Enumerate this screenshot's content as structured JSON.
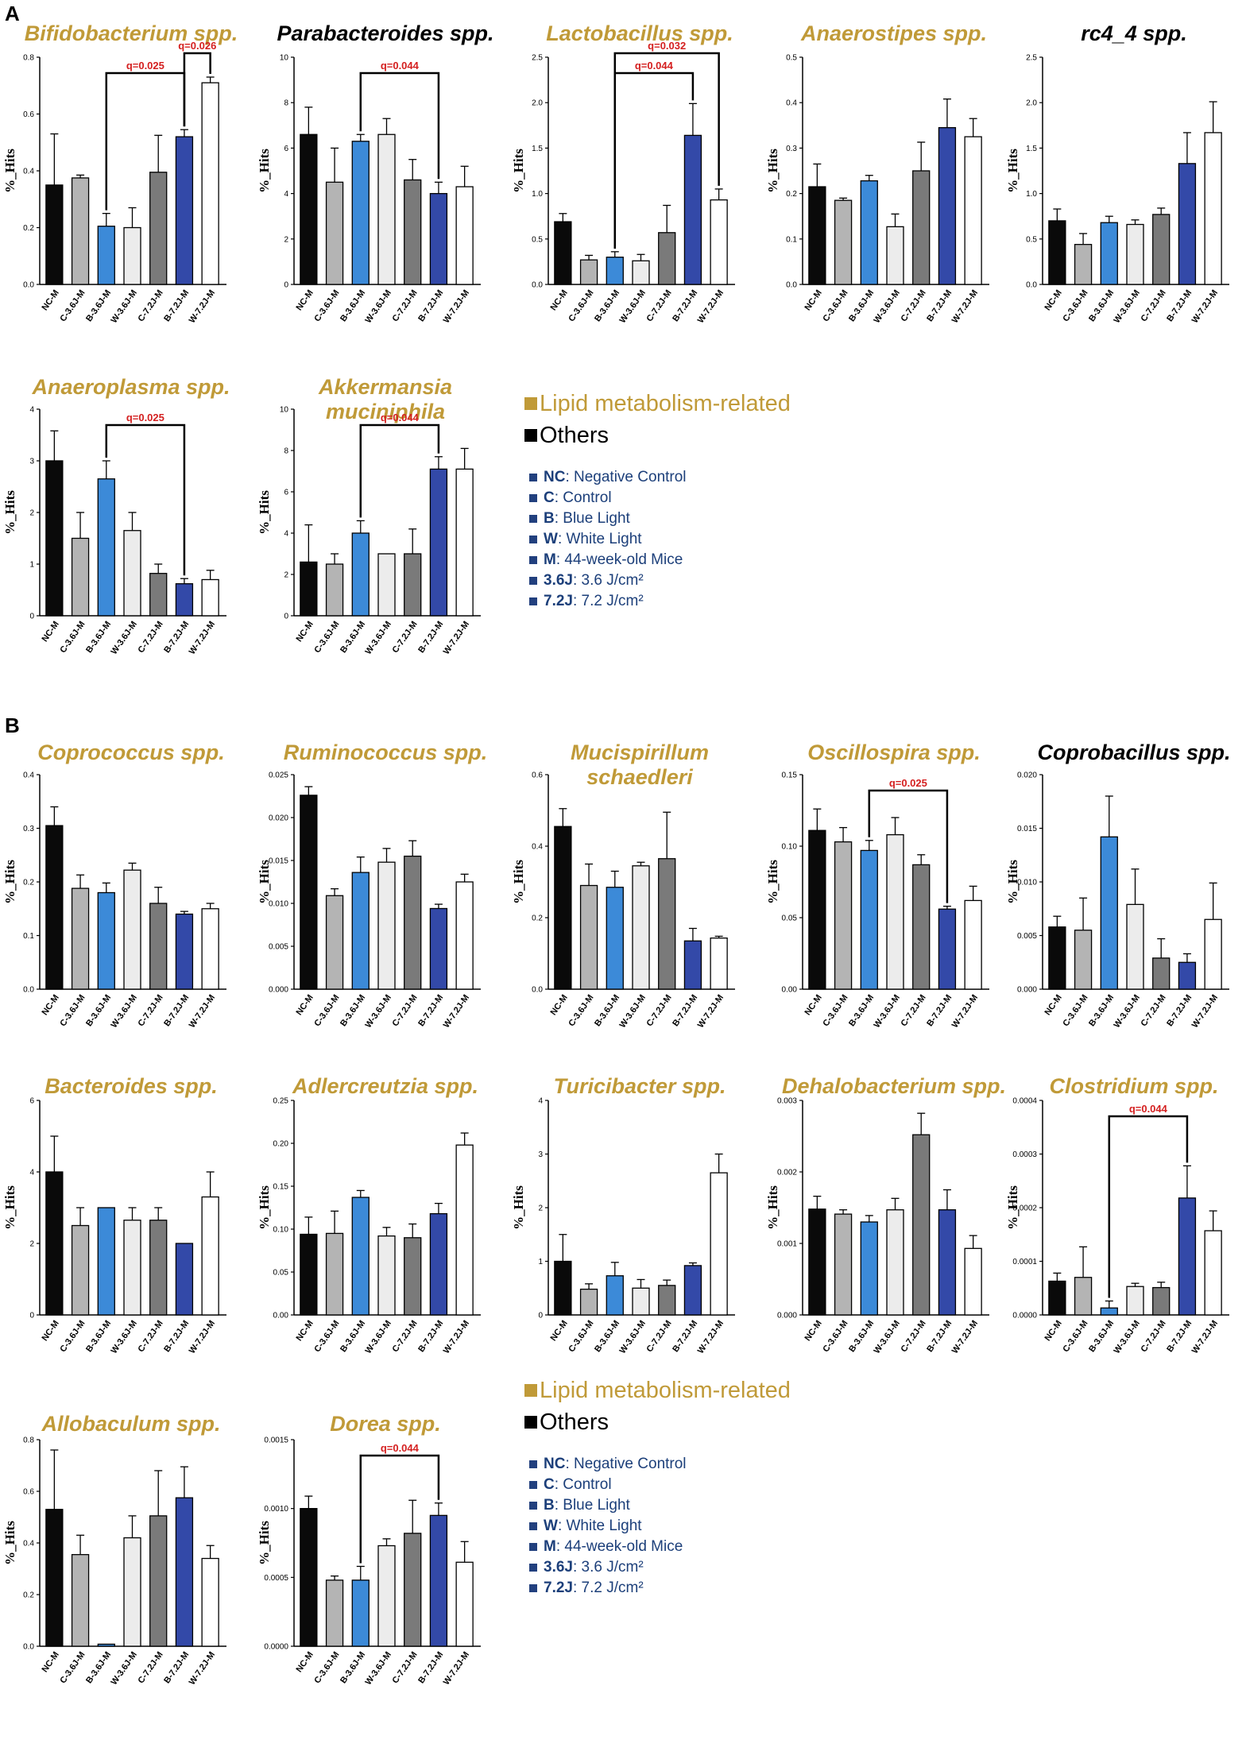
{
  "figure": {
    "label_a": "A",
    "label_b": "B"
  },
  "colors": {
    "lipid": "#c09a38",
    "others": "#000000",
    "legend_text": "#1c3f7a",
    "legend_square": "#22407e",
    "q_text": "#d42020",
    "bars": [
      "#0a0a0a",
      "#b4b4b4",
      "#3c8ad8",
      "#ececec",
      "#7a7a7a",
      "#3349a8",
      "#ffffff"
    ]
  },
  "y_axis_label": "%_Hits",
  "legend": {
    "categories": [
      {
        "label": "Lipid metabolism-related",
        "color": "#c09a38"
      },
      {
        "label": "Others",
        "color": "#000000"
      }
    ],
    "abbreviations": [
      {
        "key": "NC",
        "desc": ": Negative Control"
      },
      {
        "key": "C",
        "desc": ": Control"
      },
      {
        "key": "B",
        "desc": ": Blue Light"
      },
      {
        "key": "W",
        "desc": ": White Light"
      },
      {
        "key": "M",
        "desc": ": 44-week-old Mice"
      },
      {
        "key": "3.6J",
        "desc": ": 3.6 J/cm²"
      },
      {
        "key": "7.2J",
        "desc": ": 7.2 J/cm²"
      }
    ]
  },
  "chart_data": [
    {
      "type": "bar",
      "title": "Bifidobacterium spp.",
      "title_color": "lipid",
      "ylabel": "%_Hits",
      "ylim": [
        0,
        0.8
      ],
      "ticks": [
        "0.0",
        "0.2",
        "0.4",
        "0.6",
        "0.8"
      ],
      "categories": [
        "NC-M",
        "C-3.6J-M",
        "B-3.6J-M",
        "W-3.6J-M",
        "C-7.2J-M",
        "B-7.2J-M",
        "W-7.2J-M"
      ],
      "values": [
        0.35,
        0.375,
        0.205,
        0.2,
        0.395,
        0.52,
        0.71
      ],
      "errors": [
        0.18,
        0.01,
        0.045,
        0.07,
        0.13,
        0.025,
        0.02
      ],
      "annotations": [
        {
          "from": 2,
          "to": 5,
          "label": "q=0.025"
        },
        {
          "from": 5,
          "to": 6,
          "label": "q=0.026"
        }
      ]
    },
    {
      "type": "bar",
      "title": "Parabacteroides spp.",
      "title_color": "others",
      "ylabel": "%_Hits",
      "ylim": [
        0,
        10
      ],
      "ticks": [
        "0",
        "2",
        "4",
        "6",
        "8",
        "10"
      ],
      "categories": [
        "NC-M",
        "C-3.6J-M",
        "B-3.6J-M",
        "W-3.6J-M",
        "C-7.2J-M",
        "B-7.2J-M",
        "W-7.2J-M"
      ],
      "values": [
        6.6,
        4.5,
        6.3,
        6.6,
        4.6,
        4.0,
        4.3
      ],
      "errors": [
        1.2,
        1.5,
        0.3,
        0.7,
        0.9,
        0.5,
        0.9
      ],
      "annotations": [
        {
          "from": 2,
          "to": 5,
          "label": "q=0.044"
        }
      ]
    },
    {
      "type": "bar",
      "title": "Lactobacillus spp.",
      "title_color": "lipid",
      "ylabel": "%_Hits",
      "ylim": [
        0,
        2.5
      ],
      "ticks": [
        "0.0",
        "0.5",
        "1.0",
        "1.5",
        "2.0",
        "2.5"
      ],
      "categories": [
        "NC-M",
        "C-3.6J-M",
        "B-3.6J-M",
        "W-3.6J-M",
        "C-7.2J-M",
        "B-7.2J-M",
        "W-7.2J-M"
      ],
      "values": [
        0.69,
        0.27,
        0.3,
        0.26,
        0.57,
        1.64,
        0.93
      ],
      "errors": [
        0.09,
        0.05,
        0.06,
        0.07,
        0.3,
        0.35,
        0.12
      ],
      "annotations": [
        {
          "from": 2,
          "to": 5,
          "label": "q=0.044"
        },
        {
          "from": 2,
          "to": 6,
          "label": "q=0.032"
        }
      ]
    },
    {
      "type": "bar",
      "title": "Anaerostipes spp.",
      "title_color": "lipid",
      "ylabel": "%_Hits",
      "ylim": [
        0,
        0.5
      ],
      "ticks": [
        "0.0",
        "0.1",
        "0.2",
        "0.3",
        "0.4",
        "0.5"
      ],
      "categories": [
        "NC-M",
        "C-3.6J-M",
        "B-3.6J-M",
        "W-3.6J-M",
        "C-7.2J-M",
        "B-7.2J-M",
        "W-7.2J-M"
      ],
      "values": [
        0.215,
        0.185,
        0.228,
        0.127,
        0.25,
        0.345,
        0.325
      ],
      "errors": [
        0.05,
        0.005,
        0.012,
        0.028,
        0.063,
        0.063,
        0.04
      ],
      "annotations": []
    },
    {
      "type": "bar",
      "title": "rc4_4 spp.",
      "title_color": "others",
      "ylabel": "%_Hits",
      "ylim": [
        0,
        2.5
      ],
      "ticks": [
        "0.0",
        "0.5",
        "1.0",
        "1.5",
        "2.0",
        "2.5"
      ],
      "categories": [
        "NC-M",
        "C-3.6J-M",
        "B-3.6J-M",
        "W-3.6J-M",
        "C-7.2J-M",
        "B-7.2J-M",
        "W-7.2J-M"
      ],
      "values": [
        0.7,
        0.44,
        0.68,
        0.66,
        0.77,
        1.33,
        1.67
      ],
      "errors": [
        0.13,
        0.12,
        0.07,
        0.05,
        0.07,
        0.34,
        0.34
      ],
      "annotations": []
    },
    {
      "type": "bar",
      "title": "Anaeroplasma spp.",
      "title_color": "lipid",
      "ylabel": "%_Hits",
      "ylim": [
        0,
        4
      ],
      "ticks": [
        "0",
        "1",
        "2",
        "3",
        "4"
      ],
      "categories": [
        "NC-M",
        "C-3.6J-M",
        "B-3.6J-M",
        "W-3.6J-M",
        "C-7.2J-M",
        "B-7.2J-M",
        "W-7.2J-M"
      ],
      "values": [
        3.0,
        1.5,
        2.65,
        1.65,
        0.82,
        0.62,
        0.7
      ],
      "errors": [
        0.58,
        0.5,
        0.35,
        0.35,
        0.18,
        0.1,
        0.18
      ],
      "annotations": [
        {
          "from": 2,
          "to": 5,
          "label": "q=0.025"
        }
      ]
    },
    {
      "type": "bar",
      "title": "Akkermansia muciniphila",
      "title_lines": [
        "Akkermansia",
        "muciniphila"
      ],
      "title_color": "lipid",
      "ylabel": "%_Hits",
      "ylim": [
        0,
        10
      ],
      "ticks": [
        "0",
        "2",
        "4",
        "6",
        "8",
        "10"
      ],
      "categories": [
        "NC-M",
        "C-3.6J-M",
        "B-3.6J-M",
        "W-3.6J-M",
        "C-7.2J-M",
        "B-7.2J-M",
        "W-7.2J-M"
      ],
      "values": [
        2.6,
        2.5,
        4.0,
        3.0,
        3.0,
        7.1,
        7.1
      ],
      "errors": [
        1.8,
        0.5,
        0.6,
        0,
        1.2,
        0.6,
        1.0
      ],
      "annotations": [
        {
          "from": 2,
          "to": 5,
          "label": "q=0.044"
        }
      ]
    },
    {
      "type": "bar",
      "title": "Coprococcus spp.",
      "title_color": "lipid",
      "ylabel": "%_Hits",
      "ylim": [
        0,
        0.4
      ],
      "ticks": [
        "0.0",
        "0.1",
        "0.2",
        "0.3",
        "0.4"
      ],
      "categories": [
        "NC-M",
        "C-3.6J-M",
        "B-3.6J-M",
        "W-3.6J-M",
        "C-7.2J-M",
        "B-7.2J-M",
        "W-7.2J-M"
      ],
      "values": [
        0.305,
        0.188,
        0.18,
        0.222,
        0.16,
        0.14,
        0.15
      ],
      "errors": [
        0.035,
        0.025,
        0.018,
        0.013,
        0.03,
        0.005,
        0.01
      ],
      "annotations": []
    },
    {
      "type": "bar",
      "title": "Ruminococcus spp.",
      "title_color": "lipid",
      "ylabel": "%_Hits",
      "ylim": [
        0,
        0.025
      ],
      "ticks": [
        "0.000",
        "0.005",
        "0.010",
        "0.015",
        "0.020",
        "0.025"
      ],
      "categories": [
        "NC-M",
        "C-3.6J-M",
        "B-3.6J-M",
        "W-3.6J-M",
        "C-7.2J-M",
        "B-7.2J-M",
        "W-7.2J-M"
      ],
      "values": [
        0.0226,
        0.0109,
        0.0136,
        0.0148,
        0.0155,
        0.0094,
        0.0125
      ],
      "errors": [
        0.001,
        0.0008,
        0.0018,
        0.0016,
        0.0018,
        0.0005,
        0.0009
      ],
      "annotations": []
    },
    {
      "type": "bar",
      "title": "Mucispirillum schaedleri",
      "title_lines": [
        "Mucispirillum",
        "schaedleri"
      ],
      "title_color": "lipid",
      "ylabel": "%_Hits",
      "ylim": [
        0,
        0.6
      ],
      "ticks": [
        "0.0",
        "0.2",
        "0.4",
        "0.6"
      ],
      "categories": [
        "NC-M",
        "C-3.6J-M",
        "B-3.6J-M",
        "W-3.6J-M",
        "C-7.2J-M",
        "B-7.2J-M",
        "W-7.2J-M"
      ],
      "values": [
        0.455,
        0.29,
        0.285,
        0.345,
        0.365,
        0.135,
        0.143
      ],
      "errors": [
        0.05,
        0.06,
        0.045,
        0.01,
        0.13,
        0.035,
        0.005
      ],
      "annotations": []
    },
    {
      "type": "bar",
      "title": "Oscillospira spp.",
      "title_color": "lipid",
      "ylabel": "%_Hits",
      "ylim": [
        0,
        0.15
      ],
      "ticks": [
        "0.00",
        "0.05",
        "0.10",
        "0.15"
      ],
      "categories": [
        "NC-M",
        "C-3.6J-M",
        "B-3.6J-M",
        "W-3.6J-M",
        "C-7.2J-M",
        "B-7.2J-M",
        "W-7.2J-M"
      ],
      "values": [
        0.111,
        0.103,
        0.097,
        0.108,
        0.087,
        0.056,
        0.062
      ],
      "errors": [
        0.015,
        0.01,
        0.007,
        0.012,
        0.007,
        0.002,
        0.01
      ],
      "annotations": [
        {
          "from": 2,
          "to": 5,
          "label": "q=0.025"
        }
      ]
    },
    {
      "type": "bar",
      "title": "Coprobacillus spp.",
      "title_color": "others",
      "ylabel": "%_Hits",
      "ylim": [
        0,
        0.02
      ],
      "ticks": [
        "0.000",
        "0.005",
        "0.010",
        "0.015",
        "0.020"
      ],
      "categories": [
        "NC-M",
        "C-3.6J-M",
        "B-3.6J-M",
        "W-3.6J-M",
        "C-7.2J-M",
        "B-7.2J-M",
        "W-7.2J-M"
      ],
      "values": [
        0.0058,
        0.0055,
        0.0142,
        0.0079,
        0.0029,
        0.0025,
        0.0065
      ],
      "errors": [
        0.001,
        0.003,
        0.0038,
        0.0033,
        0.0018,
        0.0008,
        0.0034
      ],
      "annotations": []
    },
    {
      "type": "bar",
      "title": "Bacteroides spp.",
      "title_color": "lipid",
      "ylabel": "%_Hits",
      "ylim": [
        0,
        6
      ],
      "ticks": [
        "0",
        "2",
        "4",
        "6"
      ],
      "categories": [
        "NC-M",
        "C-3.6J-M",
        "B-3.6J-M",
        "W-3.6J-M",
        "C-7.2J-M",
        "B-7.2J-M",
        "W-7.2J-M"
      ],
      "values": [
        4.0,
        2.5,
        3.0,
        2.65,
        2.65,
        2.0,
        3.3
      ],
      "errors": [
        1.0,
        0.5,
        0,
        0.35,
        0.35,
        0,
        0.7
      ],
      "annotations": []
    },
    {
      "type": "bar",
      "title": "Adlercreutzia spp.",
      "title_color": "lipid",
      "ylabel": "%_Hits",
      "ylim": [
        0,
        0.25
      ],
      "ticks": [
        "0.00",
        "0.05",
        "0.10",
        "0.15",
        "0.20",
        "0.25"
      ],
      "categories": [
        "NC-M",
        "C-3.6J-M",
        "B-3.6J-M",
        "W-3.6J-M",
        "C-7.2J-M",
        "B-7.2J-M",
        "W-7.2J-M"
      ],
      "values": [
        0.094,
        0.095,
        0.137,
        0.092,
        0.09,
        0.118,
        0.198
      ],
      "errors": [
        0.02,
        0.026,
        0.008,
        0.01,
        0.016,
        0.012,
        0.014
      ],
      "annotations": []
    },
    {
      "type": "bar",
      "title": "Turicibacter spp.",
      "title_color": "lipid",
      "ylabel": "%_Hits",
      "ylim": [
        0,
        4
      ],
      "ticks": [
        "0",
        "1",
        "2",
        "3",
        "4"
      ],
      "categories": [
        "NC-M",
        "C-3.6J-M",
        "B-3.6J-M",
        "W-3.6J-M",
        "C-7.2J-M",
        "B-7.2J-M",
        "W-7.2J-M"
      ],
      "values": [
        1.0,
        0.48,
        0.73,
        0.5,
        0.55,
        0.92,
        2.65
      ],
      "errors": [
        0.5,
        0.1,
        0.25,
        0.16,
        0.1,
        0.05,
        0.35
      ],
      "annotations": []
    },
    {
      "type": "bar",
      "title": "Dehalobacterium spp.",
      "title_color": "lipid",
      "ylabel": "%_Hits",
      "ylim": [
        0,
        0.003
      ],
      "ticks": [
        "0.000",
        "0.001",
        "0.002",
        "0.003"
      ],
      "categories": [
        "NC-M",
        "C-3.6J-M",
        "B-3.6J-M",
        "W-3.6J-M",
        "C-7.2J-M",
        "B-7.2J-M",
        "W-7.2J-M"
      ],
      "values": [
        0.00148,
        0.00141,
        0.0013,
        0.00147,
        0.00252,
        0.00147,
        0.00093
      ],
      "errors": [
        0.00018,
        6e-05,
        9e-05,
        0.00016,
        0.0003,
        0.00028,
        0.00018
      ],
      "annotations": []
    },
    {
      "type": "bar",
      "title": "Clostridium spp.",
      "title_color": "lipid",
      "ylabel": "%_Hits",
      "ylim": [
        0,
        0.0004
      ],
      "ticks": [
        "0.0000",
        "0.0001",
        "0.0002",
        "0.0003",
        "0.0004"
      ],
      "categories": [
        "NC-M",
        "C-3.6J-M",
        "B-3.6J-M",
        "W-3.6J-M",
        "C-7.2J-M",
        "B-7.2J-M",
        "W-7.2J-M"
      ],
      "values": [
        6.3e-05,
        7e-05,
        1.3e-05,
        5.3e-05,
        5.1e-05,
        0.000218,
        0.000157
      ],
      "errors": [
        1.5e-05,
        5.7e-05,
        1.3e-05,
        6e-06,
        1e-05,
        6e-05,
        3.7e-05
      ],
      "annotations": [
        {
          "from": 2,
          "to": 5,
          "label": "q=0.044"
        }
      ]
    },
    {
      "type": "bar",
      "title": "Allobaculum spp.",
      "title_color": "lipid",
      "ylabel": "%_Hits",
      "ylim": [
        0,
        0.8
      ],
      "ticks": [
        "0.0",
        "0.2",
        "0.4",
        "0.6",
        "0.8"
      ],
      "categories": [
        "NC-M",
        "C-3.6J-M",
        "B-3.6J-M",
        "W-3.6J-M",
        "C-7.2J-M",
        "B-7.2J-M",
        "W-7.2J-M"
      ],
      "values": [
        0.53,
        0.355,
        0.008,
        0.42,
        0.505,
        0.575,
        0.34
      ],
      "errors": [
        0.23,
        0.075,
        0,
        0.085,
        0.175,
        0.12,
        0.05
      ],
      "annotations": []
    },
    {
      "type": "bar",
      "title": "Dorea spp.",
      "title_color": "lipid",
      "ylabel": "%_Hits",
      "ylim": [
        0,
        0.0015
      ],
      "ticks": [
        "0.0000",
        "0.0005",
        "0.0010",
        "0.0015"
      ],
      "categories": [
        "NC-M",
        "C-3.6J-M",
        "B-3.6J-M",
        "W-3.6J-M",
        "C-7.2J-M",
        "B-7.2J-M",
        "W-7.2J-M"
      ],
      "values": [
        0.001,
        0.00048,
        0.00048,
        0.00073,
        0.00082,
        0.00095,
        0.00061
      ],
      "errors": [
        9e-05,
        3e-05,
        0.0001,
        5e-05,
        0.00024,
        9e-05,
        0.00015
      ],
      "annotations": [
        {
          "from": 2,
          "to": 5,
          "label": "q=0.044"
        }
      ]
    }
  ]
}
